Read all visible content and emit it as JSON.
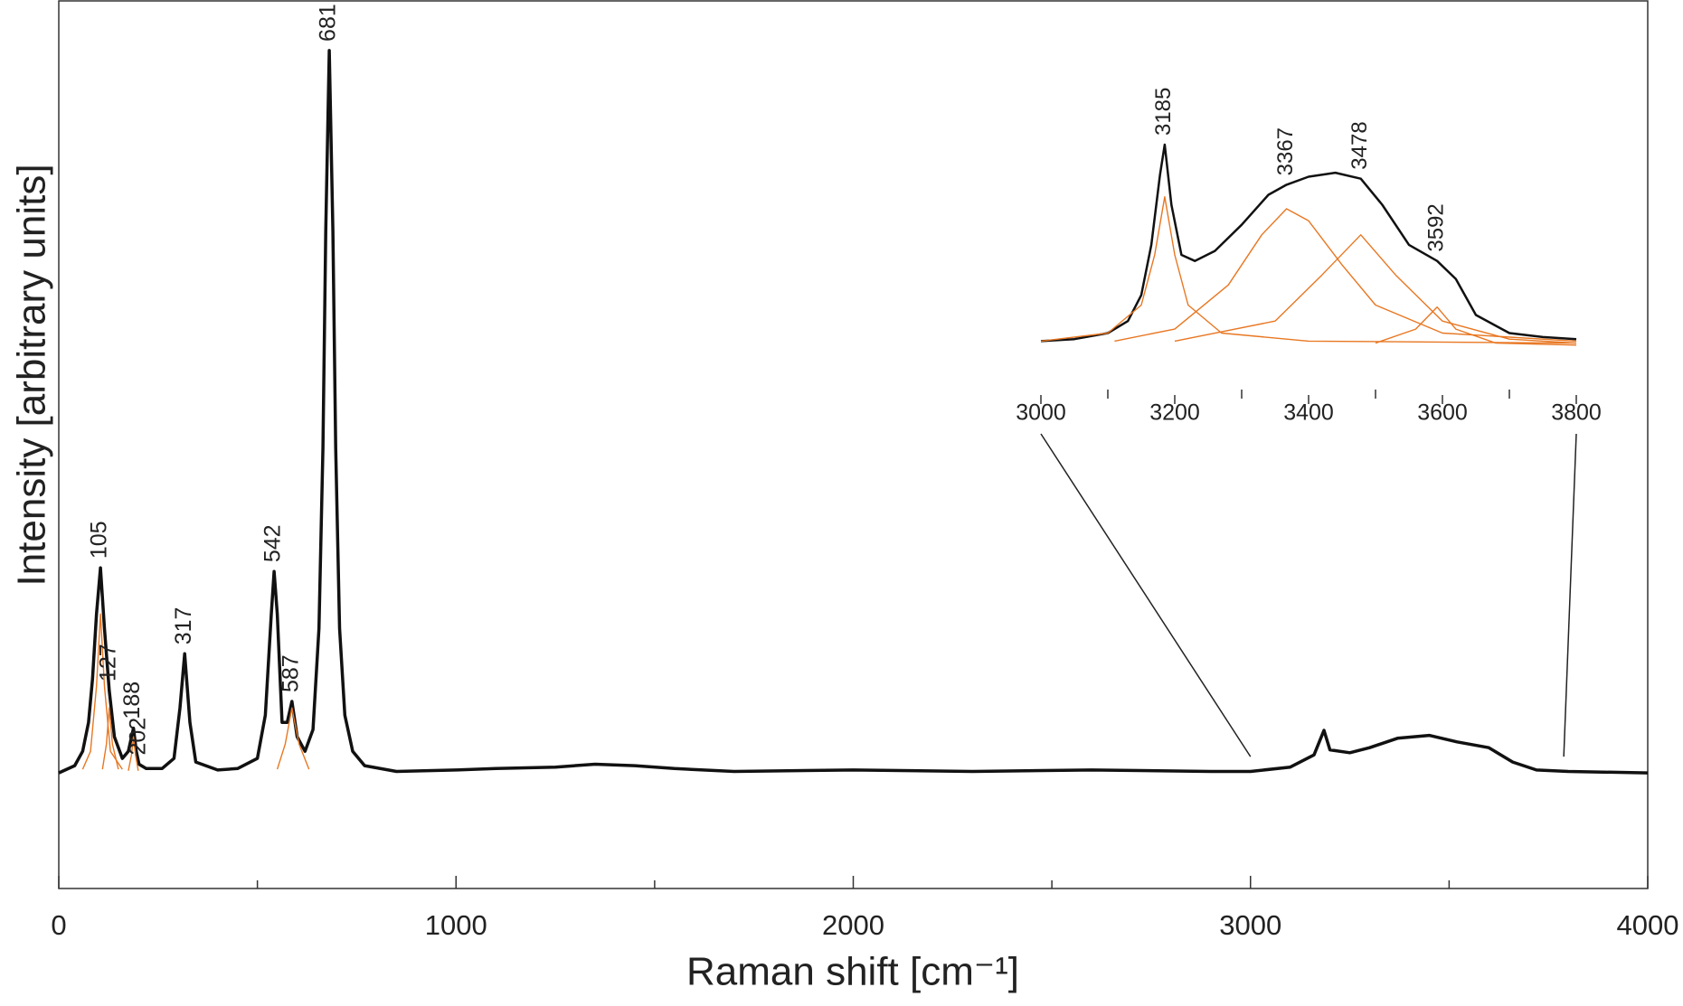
{
  "chart_data": [
    {
      "type": "line",
      "xlabel": "Raman shift [cm⁻¹]",
      "ylabel": "Intensity [arbitrary units]",
      "xlim": [
        0,
        4000
      ],
      "xticks": [
        0,
        1000,
        2000,
        3000,
        4000
      ],
      "xminor": [
        500,
        1500,
        2500,
        3500
      ],
      "ylim": [
        -0.16,
        1.07
      ],
      "peak_labels": [
        105,
        127,
        188,
        202,
        317,
        542,
        587,
        681
      ],
      "series": [
        {
          "color": "#111111",
          "x": [
            0,
            40,
            60,
            75,
            85,
            95,
            105,
            115,
            127,
            140,
            160,
            175,
            188,
            195,
            202,
            220,
            260,
            290,
            305,
            317,
            330,
            345,
            400,
            450,
            500,
            520,
            535,
            542,
            550,
            562,
            575,
            587,
            600,
            620,
            640,
            655,
            665,
            672,
            681,
            690,
            697,
            707,
            720,
            740,
            770,
            850,
            1000,
            1100,
            1250,
            1350,
            1450,
            1550,
            1700,
            2000,
            2300,
            2600,
            2900,
            3000,
            3100,
            3160,
            3185,
            3200,
            3250,
            3300,
            3370,
            3450,
            3520,
            3600,
            3660,
            3720,
            3800,
            4000
          ],
          "values": [
            0,
            0.01,
            0.03,
            0.07,
            0.13,
            0.22,
            0.284,
            0.2,
            0.114,
            0.05,
            0.02,
            0.03,
            0.062,
            0.03,
            0.012,
            0.006,
            0.006,
            0.02,
            0.09,
            0.165,
            0.07,
            0.015,
            0.004,
            0.006,
            0.02,
            0.08,
            0.22,
            0.279,
            0.22,
            0.07,
            0.07,
            0.099,
            0.05,
            0.03,
            0.06,
            0.2,
            0.45,
            0.75,
            1.0,
            0.75,
            0.45,
            0.2,
            0.08,
            0.03,
            0.01,
            0.002,
            0.004,
            0.006,
            0.008,
            0.012,
            0.01,
            0.006,
            0.002,
            0.004,
            0.002,
            0.004,
            0.002,
            0.002,
            0.008,
            0.025,
            0.059,
            0.032,
            0.028,
            0.035,
            0.048,
            0.052,
            0.043,
            0.035,
            0.015,
            0.004,
            0.002,
            0
          ]
        },
        {
          "color": "#e87722",
          "x": [
            60,
            80,
            95,
            105,
            115,
            130,
            160
          ],
          "values": [
            0.005,
            0.03,
            0.12,
            0.22,
            0.12,
            0.03,
            0.005
          ]
        },
        {
          "color": "#e87722",
          "x": [
            110,
            120,
            127,
            135,
            150
          ],
          "values": [
            0.005,
            0.04,
            0.09,
            0.04,
            0.005
          ]
        },
        {
          "color": "#e87722",
          "x": [
            175,
            183,
            188,
            193,
            200
          ],
          "values": [
            0.003,
            0.025,
            0.05,
            0.025,
            0.003
          ]
        },
        {
          "color": "#e87722",
          "x": [
            550,
            570,
            587,
            605,
            630
          ],
          "values": [
            0.005,
            0.04,
            0.09,
            0.04,
            0.005
          ]
        }
      ]
    },
    {
      "type": "line",
      "xlim": [
        3000,
        3800
      ],
      "xticks": [
        3000,
        3200,
        3400,
        3600,
        3800
      ],
      "xminor": [
        3100,
        3300,
        3500,
        3700
      ],
      "ylim": [
        -0.1,
        1.0
      ],
      "peak_labels": [
        3185,
        3367,
        3478,
        3592
      ],
      "series": [
        {
          "color": "#111111",
          "x": [
            3000,
            3050,
            3100,
            3130,
            3150,
            3165,
            3178,
            3185,
            3195,
            3210,
            3230,
            3260,
            3300,
            3340,
            3367,
            3400,
            3440,
            3478,
            3510,
            3550,
            3592,
            3620,
            3650,
            3700,
            3750,
            3800
          ],
          "values": [
            0.02,
            0.03,
            0.06,
            0.12,
            0.25,
            0.5,
            0.85,
            1.0,
            0.7,
            0.45,
            0.42,
            0.47,
            0.6,
            0.75,
            0.8,
            0.84,
            0.86,
            0.83,
            0.7,
            0.5,
            0.42,
            0.33,
            0.15,
            0.06,
            0.04,
            0.03
          ]
        },
        {
          "color": "#e87722",
          "x": [
            3000,
            3100,
            3150,
            3170,
            3185,
            3200,
            3220,
            3270,
            3400,
            3800
          ],
          "values": [
            0.02,
            0.06,
            0.2,
            0.45,
            0.74,
            0.45,
            0.2,
            0.06,
            0.02,
            0.01
          ]
        },
        {
          "color": "#e87722",
          "x": [
            3110,
            3200,
            3280,
            3330,
            3367,
            3400,
            3450,
            3500,
            3600,
            3800
          ],
          "values": [
            0.02,
            0.08,
            0.3,
            0.55,
            0.68,
            0.62,
            0.4,
            0.2,
            0.06,
            0.02
          ]
        },
        {
          "color": "#e87722",
          "x": [
            3200,
            3350,
            3420,
            3478,
            3530,
            3600,
            3700,
            3800
          ],
          "values": [
            0.02,
            0.12,
            0.35,
            0.55,
            0.35,
            0.12,
            0.03,
            0.01
          ]
        },
        {
          "color": "#e87722",
          "x": [
            3500,
            3560,
            3592,
            3620,
            3680,
            3800
          ],
          "values": [
            0.01,
            0.08,
            0.19,
            0.08,
            0.01,
            0
          ]
        }
      ]
    }
  ]
}
